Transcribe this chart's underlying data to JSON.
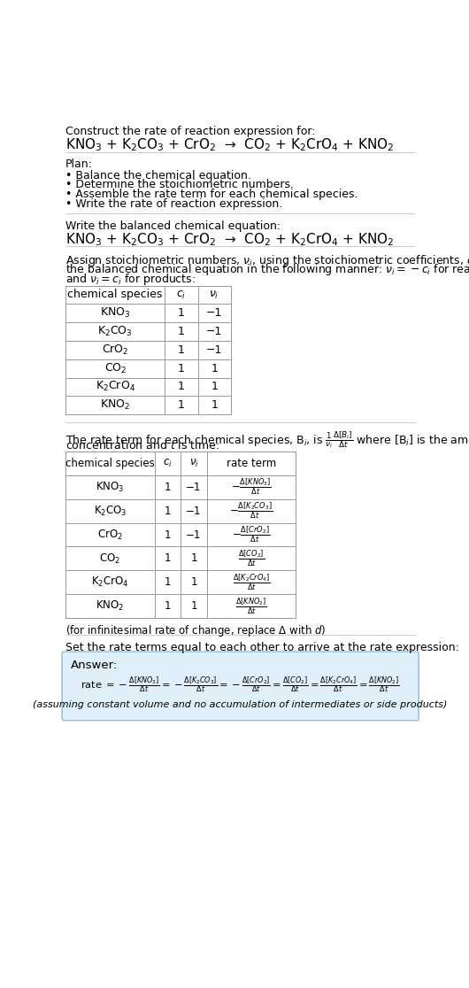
{
  "bg_color": "#ffffff",
  "title_text": "Construct the rate of reaction expression for:",
  "reaction_header": "KNO$_3$ + K$_2$CO$_3$ + CrO$_2$  →  CO$_2$ + K$_2$CrO$_4$ + KNO$_2$",
  "plan_header": "Plan:",
  "plan_items": [
    "• Balance the chemical equation.",
    "• Determine the stoichiometric numbers.",
    "• Assemble the rate term for each chemical species.",
    "• Write the rate of reaction expression."
  ],
  "balanced_header": "Write the balanced chemical equation:",
  "balanced_eq": "KNO$_3$ + K$_2$CO$_3$ + CrO$_2$  →  CO$_2$ + K$_2$CrO$_4$ + KNO$_2$",
  "stoich_intro_lines": [
    "Assign stoichiometric numbers, $\\nu_i$, using the stoichiometric coefficients, $c_i$, from",
    "the balanced chemical equation in the following manner: $\\nu_i = -c_i$ for reactants",
    "and $\\nu_i = c_i$ for products:"
  ],
  "table1_headers": [
    "chemical species",
    "$c_i$",
    "$\\nu_i$"
  ],
  "table1_rows": [
    [
      "KNO$_3$",
      "1",
      "−1"
    ],
    [
      "K$_2$CO$_3$",
      "1",
      "−1"
    ],
    [
      "CrO$_2$",
      "1",
      "−1"
    ],
    [
      "CO$_2$",
      "1",
      "1"
    ],
    [
      "K$_2$CrO$_4$",
      "1",
      "1"
    ],
    [
      "KNO$_2$",
      "1",
      "1"
    ]
  ],
  "rate_intro_lines": [
    "The rate term for each chemical species, B$_i$, is $\\frac{1}{\\nu_i}\\frac{\\Delta[B_i]}{\\Delta t}$ where [B$_i$] is the amount",
    "concentration and $t$ is time:"
  ],
  "table2_headers": [
    "chemical species",
    "$c_i$",
    "$\\nu_i$",
    "rate term"
  ],
  "table2_rows": [
    [
      "KNO$_3$",
      "1",
      "−1",
      "$-\\frac{\\Delta[KNO_3]}{\\Delta t}$"
    ],
    [
      "K$_2$CO$_3$",
      "1",
      "−1",
      "$-\\frac{\\Delta[K_2CO_3]}{\\Delta t}$"
    ],
    [
      "CrO$_2$",
      "1",
      "−1",
      "$-\\frac{\\Delta[CrO_2]}{\\Delta t}$"
    ],
    [
      "CO$_2$",
      "1",
      "1",
      "$\\frac{\\Delta[CO_2]}{\\Delta t}$"
    ],
    [
      "K$_2$CrO$_4$",
      "1",
      "1",
      "$\\frac{\\Delta[K_2CrO_4]}{\\Delta t}$"
    ],
    [
      "KNO$_2$",
      "1",
      "1",
      "$\\frac{\\Delta[KNO_2]}{\\Delta t}$"
    ]
  ],
  "infinitesimal_note": "(for infinitesimal rate of change, replace Δ with $d$)",
  "set_rate_text": "Set the rate terms equal to each other to arrive at the rate expression:",
  "answer_label": "Answer:",
  "answer_box_color": "#dff0fa",
  "answer_box_border": "#90bcd8",
  "rate_expression": "rate $= -\\frac{\\Delta[KNO_3]}{\\Delta t} = -\\frac{\\Delta[K_2CO_3]}{\\Delta t} = -\\frac{\\Delta[CrO_2]}{\\Delta t} = \\frac{\\Delta[CO_2]}{\\Delta t} = \\frac{\\Delta[K_2CrO_4]}{\\Delta t} = \\frac{\\Delta[KNO_2]}{\\Delta t}$",
  "assumption_note": "(assuming constant volume and no accumulation of intermediates or side products)",
  "table_border_color": "#999999",
  "text_color": "#000000",
  "line_color": "#cccccc"
}
